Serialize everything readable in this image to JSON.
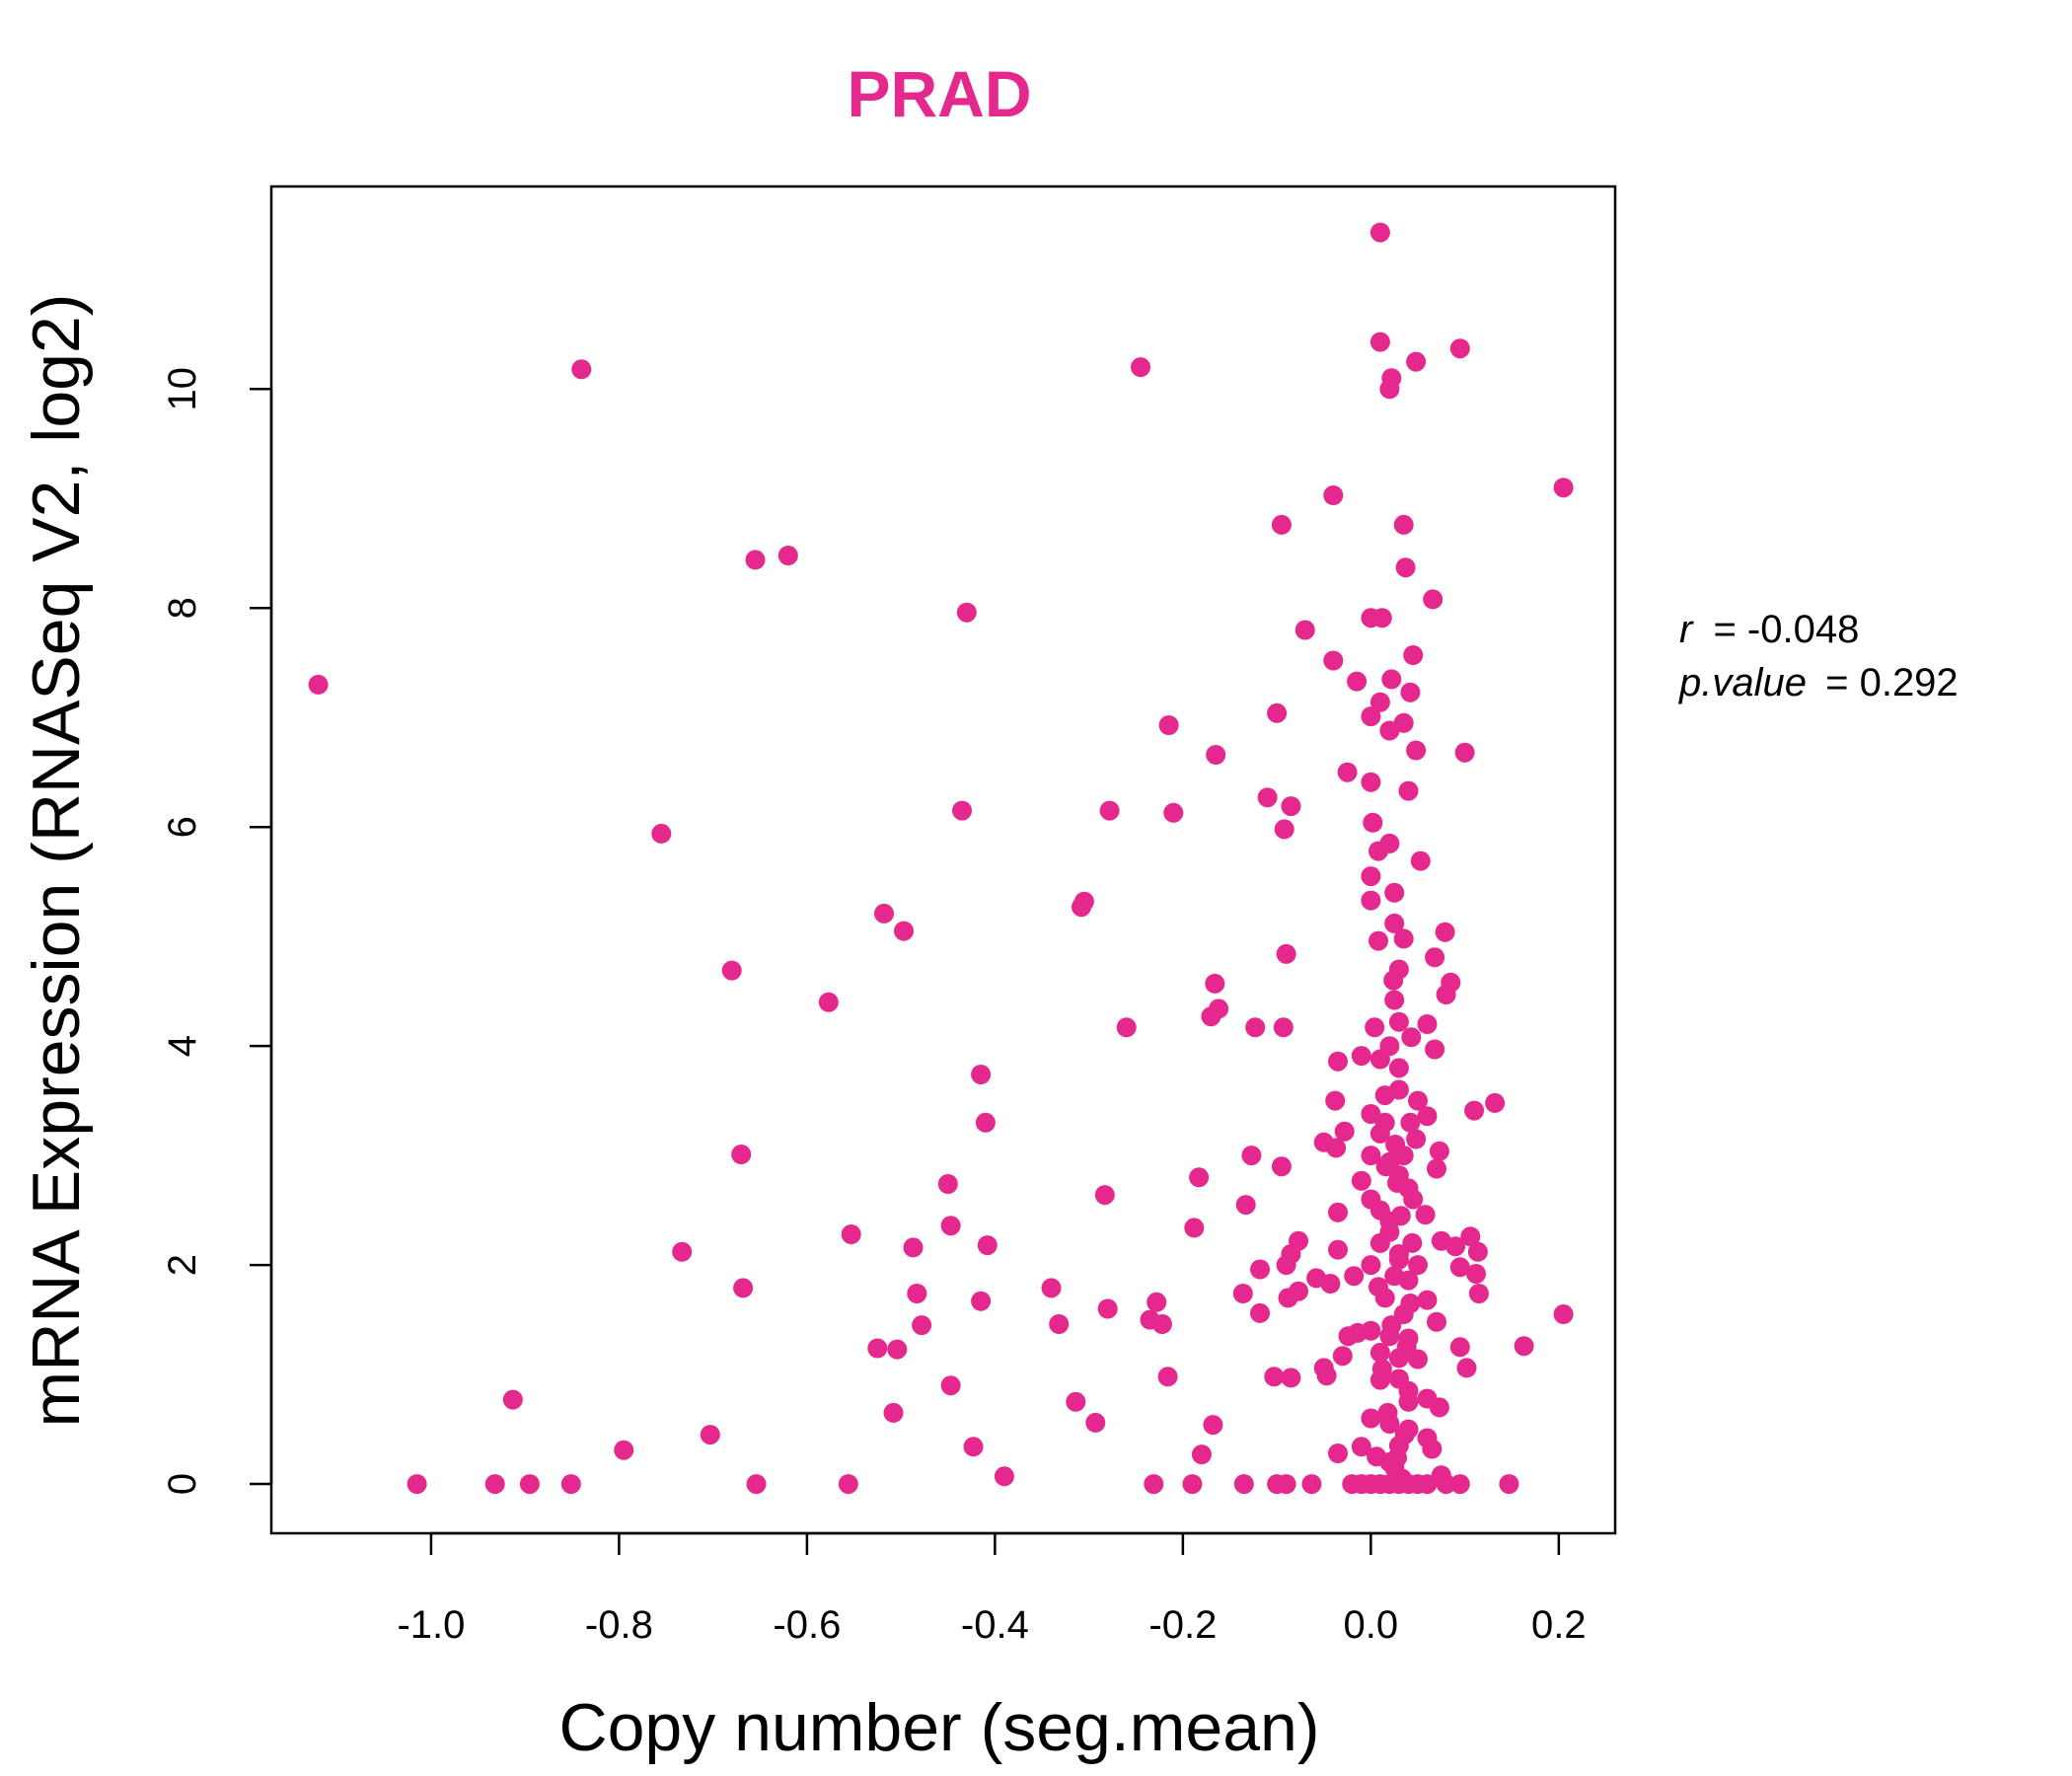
{
  "chart_data": {
    "type": "scatter",
    "title": "PRAD",
    "title_color": "#e5288d",
    "point_color": "#e5288d",
    "xlabel": "Copy number (seg.mean)",
    "ylabel": "mRNA Expression (RNASeq V2, log2)",
    "xlim": [
      -1.17,
      0.26
    ],
    "ylim": [
      -0.45,
      11.85
    ],
    "x_ticks": [
      -1.0,
      -0.8,
      -0.6,
      -0.4,
      -0.2,
      0.0,
      0.2
    ],
    "x_tick_labels": [
      "-1.0",
      "-0.8",
      "-0.6",
      "-0.4",
      "-0.2",
      "0.0",
      "0.2"
    ],
    "y_ticks": [
      0,
      2,
      4,
      6,
      8,
      10
    ],
    "y_tick_labels": [
      "0",
      "2",
      "4",
      "6",
      "8",
      "10"
    ],
    "grid": false,
    "stats": {
      "r_label": "r",
      "r_value": "-0.048",
      "p_label": "p.value",
      "p_value": "0.292"
    },
    "points": [
      [
        -1.12,
        7.3
      ],
      [
        -0.84,
        10.18
      ],
      [
        -0.655,
        8.44
      ],
      [
        -0.62,
        8.48
      ],
      [
        -0.43,
        7.96
      ],
      [
        -0.245,
        10.2
      ],
      [
        0.01,
        11.43
      ],
      [
        0.01,
        10.43
      ],
      [
        0.048,
        10.25
      ],
      [
        0.095,
        10.37
      ],
      [
        0.022,
        10.1
      ],
      [
        0.02,
        10.0
      ],
      [
        0.205,
        9.1
      ],
      [
        -0.04,
        9.03
      ],
      [
        -0.095,
        8.76
      ],
      [
        0.035,
        8.76
      ],
      [
        0.037,
        8.37
      ],
      [
        0.066,
        8.08
      ],
      [
        -0.07,
        7.8
      ],
      [
        0.0,
        7.91
      ],
      [
        0.012,
        7.91
      ],
      [
        -0.04,
        7.52
      ],
      [
        0.045,
        7.57
      ],
      [
        -0.015,
        7.33
      ],
      [
        0.022,
        7.35
      ],
      [
        0.042,
        7.23
      ],
      [
        -0.1,
        7.04
      ],
      [
        0.01,
        7.14
      ],
      [
        0.0,
        7.01
      ],
      [
        0.035,
        6.95
      ],
      [
        0.02,
        6.88
      ],
      [
        -0.215,
        6.93
      ],
      [
        0.1,
        6.68
      ],
      [
        0.048,
        6.7
      ],
      [
        -0.165,
        6.66
      ],
      [
        -0.025,
        6.5
      ],
      [
        0.0,
        6.41
      ],
      [
        0.04,
        6.33
      ],
      [
        -0.11,
        6.27
      ],
      [
        -0.085,
        6.19
      ],
      [
        -0.435,
        6.15
      ],
      [
        -0.278,
        6.15
      ],
      [
        -0.21,
        6.13
      ],
      [
        0.002,
        6.04
      ],
      [
        -0.092,
        5.98
      ],
      [
        -0.755,
        5.94
      ],
      [
        0.02,
        5.85
      ],
      [
        0.008,
        5.78
      ],
      [
        0.053,
        5.69
      ],
      [
        0.0,
        5.55
      ],
      [
        0.025,
        5.4
      ],
      [
        -0.305,
        5.32
      ],
      [
        -0.308,
        5.27
      ],
      [
        0.0,
        5.33
      ],
      [
        -0.518,
        5.21
      ],
      [
        -0.497,
        5.05
      ],
      [
        0.025,
        5.12
      ],
      [
        0.079,
        5.04
      ],
      [
        0.035,
        4.98
      ],
      [
        0.008,
        4.96
      ],
      [
        -0.09,
        4.84
      ],
      [
        0.068,
        4.81
      ],
      [
        0.03,
        4.7
      ],
      [
        -0.68,
        4.69
      ],
      [
        0.024,
        4.6
      ],
      [
        0.085,
        4.58
      ],
      [
        -0.166,
        4.57
      ],
      [
        0.08,
        4.47
      ],
      [
        0.025,
        4.42
      ],
      [
        -0.577,
        4.4
      ],
      [
        -0.162,
        4.34
      ],
      [
        -0.17,
        4.27
      ],
      [
        0.03,
        4.22
      ],
      [
        0.06,
        4.2
      ],
      [
        -0.26,
        4.17
      ],
      [
        -0.123,
        4.17
      ],
      [
        -0.093,
        4.17
      ],
      [
        0.004,
        4.17
      ],
      [
        0.043,
        4.08
      ],
      [
        0.02,
        4.0
      ],
      [
        0.068,
        3.97
      ],
      [
        -0.01,
        3.91
      ],
      [
        0.01,
        3.88
      ],
      [
        -0.035,
        3.86
      ],
      [
        0.03,
        3.8
      ],
      [
        -0.415,
        3.74
      ],
      [
        0.03,
        3.6
      ],
      [
        0.015,
        3.55
      ],
      [
        0.05,
        3.5
      ],
      [
        -0.038,
        3.5
      ],
      [
        0.132,
        3.48
      ],
      [
        0.11,
        3.41
      ],
      [
        0.0,
        3.38
      ],
      [
        0.06,
        3.36
      ],
      [
        -0.41,
        3.3
      ],
      [
        0.042,
        3.3
      ],
      [
        -0.028,
        3.22
      ],
      [
        0.01,
        3.2
      ],
      [
        0.048,
        3.15
      ],
      [
        -0.05,
        3.12
      ],
      [
        -0.037,
        3.07
      ],
      [
        0.073,
        3.04
      ],
      [
        0.0,
        3.0
      ],
      [
        -0.127,
        3.0
      ],
      [
        -0.67,
        3.01
      ],
      [
        0.02,
        2.94
      ],
      [
        -0.095,
        2.9
      ],
      [
        0.07,
        2.88
      ],
      [
        0.03,
        2.82
      ],
      [
        -0.183,
        2.8
      ],
      [
        -0.01,
        2.77
      ],
      [
        -0.45,
        2.74
      ],
      [
        0.04,
        2.7
      ],
      [
        -0.283,
        2.64
      ],
      [
        0.0,
        2.6
      ],
      [
        -0.133,
        2.55
      ],
      [
        -0.035,
        2.48
      ],
      [
        0.058,
        2.46
      ],
      [
        0.02,
        2.4
      ],
      [
        -0.447,
        2.36
      ],
      [
        -0.188,
        2.34
      ],
      [
        -0.553,
        2.28
      ],
      [
        0.106,
        2.26
      ],
      [
        0.075,
        2.22
      ],
      [
        -0.077,
        2.22
      ],
      [
        0.01,
        2.2
      ],
      [
        -0.408,
        2.18
      ],
      [
        0.09,
        2.17
      ],
      [
        -0.487,
        2.16
      ],
      [
        0.114,
        2.12
      ],
      [
        -0.733,
        2.12
      ],
      [
        -0.035,
        2.14
      ],
      [
        -0.085,
        2.1
      ],
      [
        0.03,
        2.05
      ],
      [
        0.0,
        2.0
      ],
      [
        -0.09,
        2.0
      ],
      [
        0.095,
        1.98
      ],
      [
        -0.118,
        1.96
      ],
      [
        0.112,
        1.92
      ],
      [
        -0.018,
        1.9
      ],
      [
        -0.058,
        1.88
      ],
      [
        0.04,
        1.86
      ],
      [
        -0.043,
        1.83
      ],
      [
        -0.34,
        1.79
      ],
      [
        -0.668,
        1.79
      ],
      [
        -0.077,
        1.76
      ],
      [
        0.115,
        1.74
      ],
      [
        -0.136,
        1.74
      ],
      [
        -0.483,
        1.74
      ],
      [
        -0.088,
        1.7
      ],
      [
        0.06,
        1.68
      ],
      [
        -0.415,
        1.67
      ],
      [
        -0.228,
        1.66
      ],
      [
        -0.28,
        1.6
      ],
      [
        -0.118,
        1.56
      ],
      [
        0.205,
        1.55
      ],
      [
        -0.235,
        1.5
      ],
      [
        -0.222,
        1.46
      ],
      [
        -0.332,
        1.46
      ],
      [
        -0.478,
        1.45
      ],
      [
        0.07,
        1.48
      ],
      [
        0.0,
        1.4
      ],
      [
        -0.014,
        1.38
      ],
      [
        -0.024,
        1.35
      ],
      [
        0.04,
        1.33
      ],
      [
        0.163,
        1.26
      ],
      [
        0.095,
        1.25
      ],
      [
        -0.525,
        1.24
      ],
      [
        -0.504,
        1.23
      ],
      [
        0.01,
        1.2
      ],
      [
        -0.03,
        1.17
      ],
      [
        0.05,
        1.14
      ],
      [
        -0.05,
        1.06
      ],
      [
        0.102,
        1.06
      ],
      [
        -0.216,
        0.98
      ],
      [
        -0.103,
        0.98
      ],
      [
        -0.085,
        0.97
      ],
      [
        -0.047,
        0.99
      ],
      [
        0.03,
        0.96
      ],
      [
        -0.447,
        0.9
      ],
      [
        0.04,
        0.85
      ],
      [
        -0.913,
        0.77
      ],
      [
        0.06,
        0.78
      ],
      [
        -0.314,
        0.75
      ],
      [
        0.073,
        0.7
      ],
      [
        -0.508,
        0.65
      ],
      [
        0.0,
        0.6
      ],
      [
        -0.293,
        0.56
      ],
      [
        -0.168,
        0.54
      ],
      [
        0.04,
        0.5
      ],
      [
        -0.703,
        0.45
      ],
      [
        0.06,
        0.42
      ],
      [
        -0.423,
        0.34
      ],
      [
        -0.795,
        0.31
      ],
      [
        0.065,
        0.32
      ],
      [
        -0.01,
        0.34
      ],
      [
        -0.035,
        0.28
      ],
      [
        -0.18,
        0.27
      ],
      [
        0.028,
        0.24
      ],
      [
        0.02,
        0.2
      ],
      [
        -0.39,
        0.07
      ],
      [
        0.075,
        0.08
      ],
      [
        0.033,
        0.05
      ],
      [
        -1.015,
        0.0
      ],
      [
        -0.932,
        0.0
      ],
      [
        -0.895,
        0.0
      ],
      [
        -0.851,
        0.0
      ],
      [
        -0.654,
        0.0
      ],
      [
        -0.556,
        0.0
      ],
      [
        -0.231,
        0.0
      ],
      [
        -0.19,
        0.0
      ],
      [
        -0.135,
        0.0
      ],
      [
        -0.1,
        0.0
      ],
      [
        -0.09,
        0.0
      ],
      [
        -0.063,
        0.0
      ],
      [
        -0.02,
        0.0
      ],
      [
        -0.01,
        0.0
      ],
      [
        0.0,
        0.0
      ],
      [
        0.01,
        0.0
      ],
      [
        0.02,
        0.0
      ],
      [
        0.03,
        0.0
      ],
      [
        0.04,
        0.0
      ],
      [
        0.05,
        0.0
      ],
      [
        0.06,
        0.0
      ],
      [
        0.08,
        0.0
      ],
      [
        0.095,
        0.0
      ],
      [
        0.147,
        0.0
      ],
      [
        0.01,
        2.5
      ],
      [
        0.02,
        2.3
      ],
      [
        0.03,
        2.1
      ],
      [
        0.025,
        1.9
      ],
      [
        0.015,
        1.7
      ],
      [
        0.035,
        1.55
      ],
      [
        0.02,
        1.35
      ],
      [
        0.03,
        1.15
      ],
      [
        0.01,
        0.95
      ],
      [
        0.04,
        0.75
      ],
      [
        0.02,
        0.55
      ],
      [
        0.03,
        0.35
      ],
      [
        0.025,
        0.15
      ],
      [
        0.045,
        2.6
      ],
      [
        0.05,
        2.0
      ],
      [
        0.035,
        3.0
      ],
      [
        0.015,
        3.3
      ],
      [
        0.028,
        2.75
      ],
      [
        0.022,
        1.45
      ],
      [
        0.012,
        1.05
      ],
      [
        0.038,
        1.25
      ],
      [
        0.018,
        0.65
      ],
      [
        0.042,
        1.65
      ],
      [
        0.008,
        1.8
      ],
      [
        0.032,
        2.45
      ],
      [
        0.026,
        3.1
      ],
      [
        0.016,
        2.9
      ],
      [
        0.044,
        2.2
      ],
      [
        0.036,
        0.45
      ],
      [
        0.006,
        0.25
      ]
    ]
  }
}
